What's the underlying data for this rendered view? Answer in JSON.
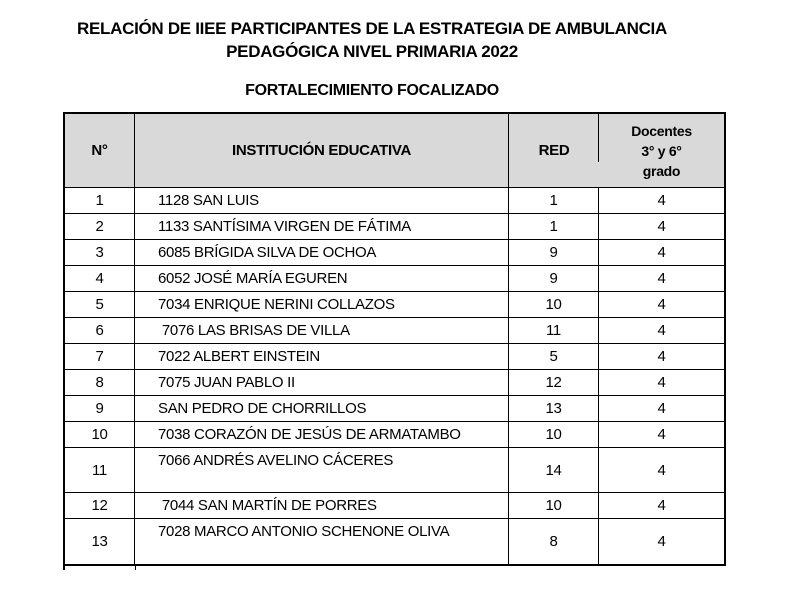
{
  "page": {
    "title_line1": "RELACIÓN DE IIEE PARTICIPANTES DE LA ESTRATEGIA DE AMBULANCIA",
    "title_line2": "PEDAGÓGICA NIVEL PRIMARIA 2022",
    "subtitle": "FORTALECIMIENTO FOCALIZADO"
  },
  "colors": {
    "page_bg": "#ffffff",
    "header_bg": "#d9d9d9",
    "border": "#000000",
    "text": "#000000"
  },
  "table": {
    "headers": {
      "num": "N°",
      "institution": "INSTITUCIÓN EDUCATIVA",
      "red": "RED",
      "docentes": [
        "Docentes",
        "3° y 6°",
        "grado"
      ]
    },
    "rows": [
      {
        "num": "1",
        "institution": "1128 SAN LUIS",
        "red": "1",
        "docentes": "4"
      },
      {
        "num": "2",
        "institution": "1133 SANTÍSIMA VIRGEN DE FÁTIMA",
        "red": "1",
        "docentes": "4"
      },
      {
        "num": "3",
        "institution": "6085 BRÍGIDA SILVA DE OCHOA",
        "red": "9",
        "docentes": "4"
      },
      {
        "num": "4",
        "institution": "6052 JOSÉ MARÍA EGUREN",
        "red": "9",
        "docentes": "4"
      },
      {
        "num": "5",
        "institution": "7034 ENRIQUE NERINI COLLAZOS",
        "red": "10",
        "docentes": "4"
      },
      {
        "num": "6",
        "institution": " 7076 LAS BRISAS DE VILLA",
        "red": "11",
        "docentes": "4"
      },
      {
        "num": "7",
        "institution": "7022 ALBERT EINSTEIN",
        "red": "5",
        "docentes": "4"
      },
      {
        "num": "8",
        "institution": "7075 JUAN PABLO II",
        "red": "12",
        "docentes": "4"
      },
      {
        "num": "9",
        "institution": "SAN PEDRO DE CHORRILLOS",
        "red": "13",
        "docentes": "4"
      },
      {
        "num": "10",
        "institution": "7038 CORAZÓN DE JESÚS DE ARMATAMBO",
        "red": "10",
        "docentes": "4"
      },
      {
        "num": "11",
        "institution": "7066 ANDRÉS AVELINO CÁCERES",
        "red": "14",
        "docentes": "4"
      },
      {
        "num": "12",
        "institution": " 7044 SAN MARTÍN DE PORRES",
        "red": "10",
        "docentes": "4"
      },
      {
        "num": "13",
        "institution": "7028 MARCO ANTONIO SCHENONE OLIVA",
        "red": "8",
        "docentes": "4"
      }
    ]
  }
}
